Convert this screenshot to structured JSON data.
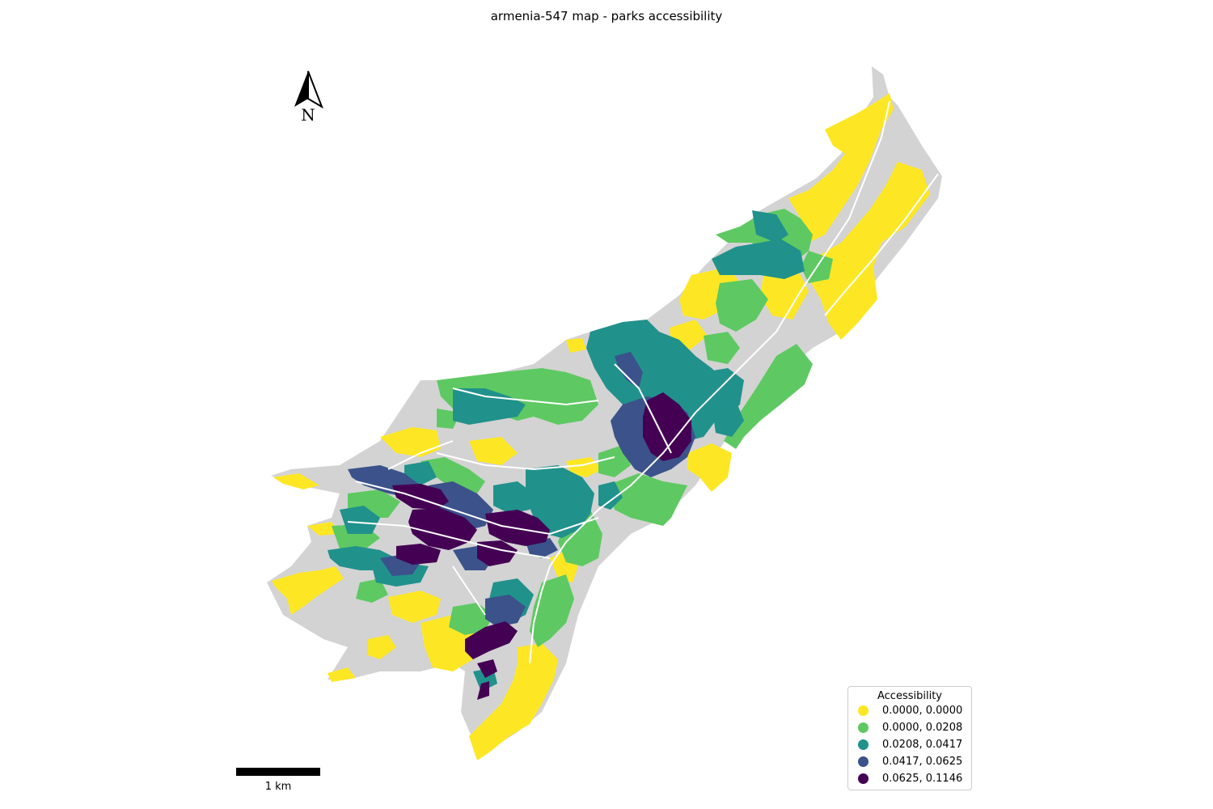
{
  "title": "armenia-547 map - parks accessibility",
  "north_arrow": {
    "label": "N"
  },
  "scale_bar": {
    "label": "1 km"
  },
  "legend": {
    "title": "Accessibility",
    "items": [
      {
        "label": "0.0000, 0.0000",
        "color": "#fde725"
      },
      {
        "label": "0.0000, 0.0208",
        "color": "#5ec962"
      },
      {
        "label": "0.0208, 0.0417",
        "color": "#21918c"
      },
      {
        "label": "0.0417, 0.0625",
        "color": "#3b528b"
      },
      {
        "label": "0.0625, 0.1146",
        "color": "#440154"
      }
    ]
  },
  "colors": {
    "no_data": "#d3d3d3",
    "background": "#ffffff"
  }
}
